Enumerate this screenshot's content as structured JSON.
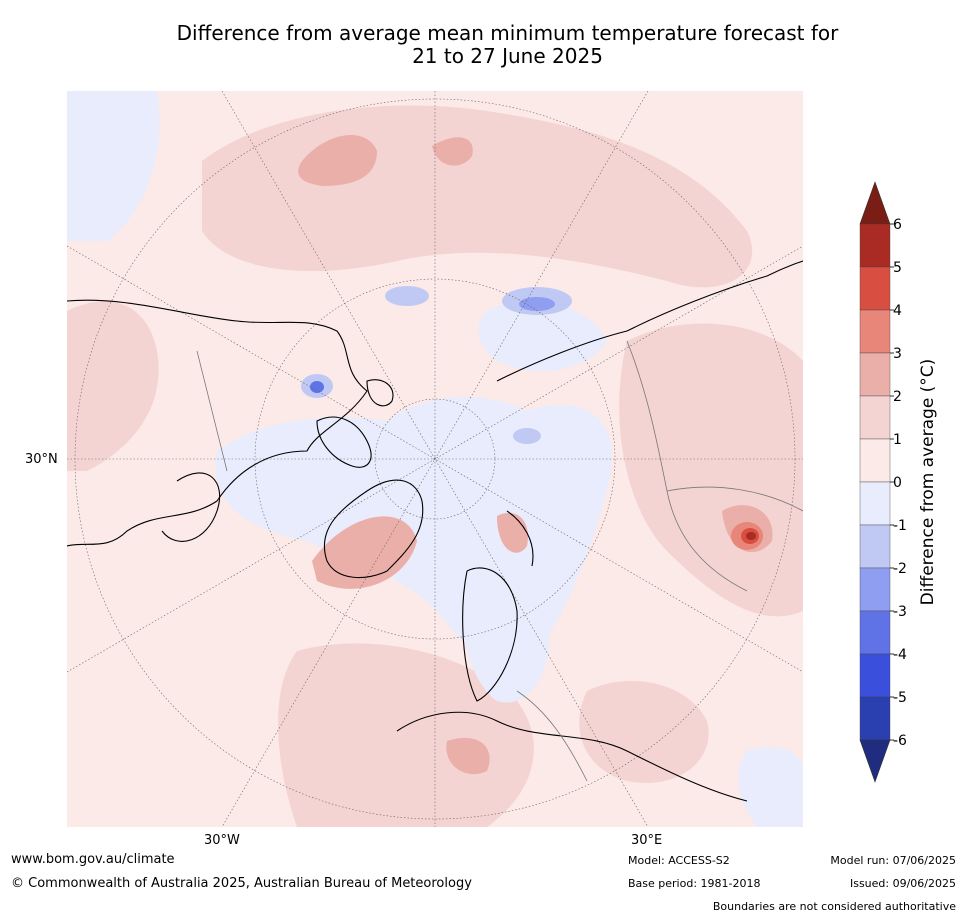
{
  "title": {
    "line1": "Difference from average mean minimum temperature forecast for",
    "line2": "21 to 27 June 2025"
  },
  "map": {
    "projection": "north-polar-stereographic",
    "axis_labels": {
      "left": "30°N",
      "bottom_left": "30°W",
      "bottom_right": "30°E"
    },
    "colors": {
      "0_1": "#fbeae8",
      "1_2": "#f4d4d2",
      "2_3": "#ebafaa",
      "3_4": "#e78679",
      "4_5": "#d84e41",
      "5_6": "#a92b24",
      "gt6": "#7a1d15",
      "m1_0": "#e8ecfc",
      "m2_m1": "#c0c8f4",
      "m3_m2": "#8f9ef0",
      "m4_m3": "#5f73e6",
      "m5_m4": "#3a50dc",
      "m6_m5": "#2a3fb0",
      "lt_m6": "#1f2c80"
    }
  },
  "colorbar": {
    "title": "Difference from average (°C)",
    "ticks": [
      "6",
      "5",
      "4",
      "3",
      "2",
      "1",
      "0",
      "-1",
      "-2",
      "-3",
      "-4",
      "-5",
      "-6"
    ],
    "colors": [
      "#a92b24",
      "#d84e41",
      "#e78679",
      "#ebafaa",
      "#f4d4d2",
      "#fbeae8",
      "#e8ecfc",
      "#c0c8f4",
      "#8f9ef0",
      "#5f73e6",
      "#3a50dc",
      "#2a3fb0"
    ],
    "over_color": "#7a1d15",
    "under_color": "#1f2c80"
  },
  "footer": {
    "website": "www.bom.gov.au/climate",
    "copyright": "© Commonwealth of Australia 2025, Australian Bureau of Meteorology",
    "model": "Model: ACCESS-S2",
    "base_period": "Base period: 1981-2018",
    "model_run": "Model run: 07/06/2025",
    "issued": "Issued: 09/06/2025",
    "disclaimer": "Boundaries are not considered authoritative"
  }
}
